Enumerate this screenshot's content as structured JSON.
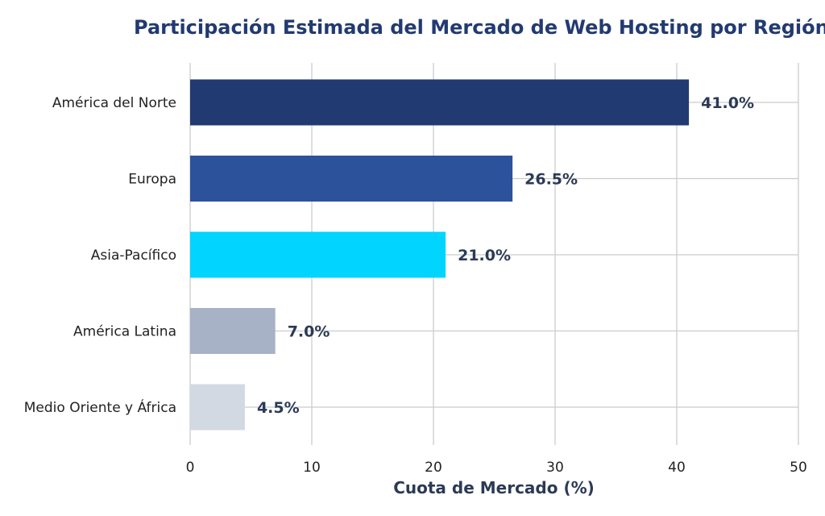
{
  "chart_data": {
    "type": "bar",
    "orientation": "horizontal",
    "title": "Participación Estimada del Mercado de Web Hosting por Región",
    "xlabel": "Cuota de Mercado (%)",
    "ylabel": "",
    "categories": [
      "América del Norte",
      "Europa",
      "Asia-Pacífico",
      "América Latina",
      "Medio Oriente y África"
    ],
    "values": [
      41.0,
      26.5,
      21.0,
      7.0,
      4.5
    ],
    "value_labels": [
      "41.0%",
      "26.5%",
      "21.0%",
      "7.0%",
      "4.5%"
    ],
    "bar_colors": [
      "#223a72",
      "#2c529b",
      "#00d4ff",
      "#a7b2c6",
      "#d3d9e3"
    ],
    "xlim": [
      0,
      50
    ],
    "xticks": [
      0,
      10,
      20,
      30,
      40,
      50
    ],
    "grid": true,
    "title_color": "#223a72",
    "label_color": "#2b3a55",
    "grid_color": "#cccccc"
  }
}
